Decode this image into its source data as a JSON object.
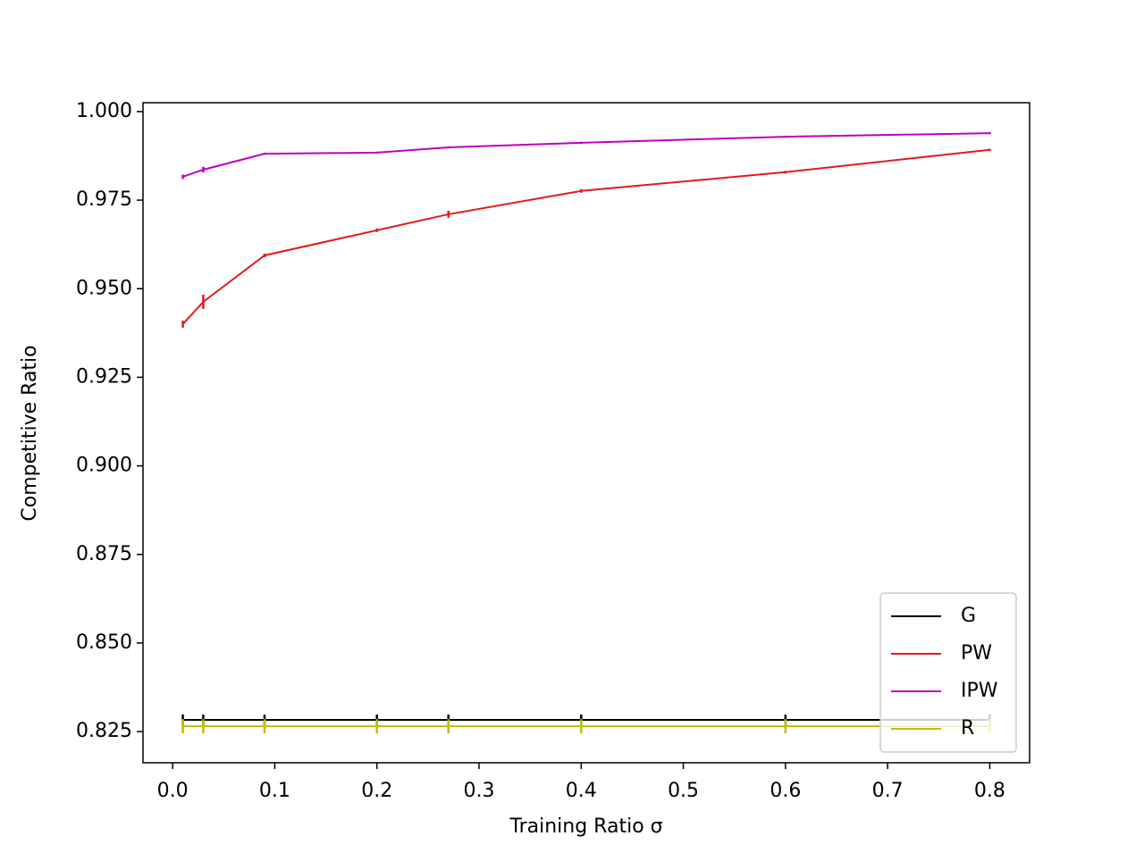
{
  "chart_data": {
    "type": "line",
    "x_label": "Training Ratio σ",
    "y_label": "Competitive Ratio",
    "x": [
      0.01,
      0.03,
      0.09,
      0.2,
      0.27,
      0.4,
      0.6,
      0.8
    ],
    "series": [
      {
        "name": "G",
        "color": "#000000",
        "values": [
          0.8283,
          0.8283,
          0.8283,
          0.8283,
          0.8283,
          0.8283,
          0.8283,
          0.8283
        ],
        "errors": [
          0.0015,
          0.0015,
          0.0015,
          0.0015,
          0.0015,
          0.0015,
          0.0015,
          0.0015
        ]
      },
      {
        "name": "PW",
        "color": "#e31a1c",
        "values": [
          0.94,
          0.9463,
          0.9594,
          0.9665,
          0.971,
          0.9776,
          0.9829,
          0.9892
        ],
        "errors": [
          0.001,
          0.002,
          0.0005,
          0.0005,
          0.001,
          0.0005,
          0.0004,
          0.0003
        ]
      },
      {
        "name": "IPW",
        "color": "#bf00bf",
        "values": [
          0.9816,
          0.9836,
          0.9881,
          0.9884,
          0.9899,
          0.9912,
          0.9929,
          0.9939
        ],
        "errors": [
          0.0006,
          0.0008,
          0.0003,
          0.0003,
          0.0003,
          0.0003,
          0.0003,
          0.0003
        ]
      },
      {
        "name": "R",
        "color": "#bfbf00",
        "values": [
          0.8265,
          0.8265,
          0.8265,
          0.8265,
          0.8265,
          0.8265,
          0.8265,
          0.8265
        ],
        "errors": [
          0.002,
          0.002,
          0.002,
          0.002,
          0.002,
          0.002,
          0.002,
          0.002
        ]
      }
    ],
    "xlim": [
      -0.029,
      0.839
    ],
    "ylim": [
      0.8162,
      1.0025
    ],
    "xticks": [
      {
        "value": 0,
        "label": "0.0"
      },
      0.1,
      0.2,
      0.3,
      0.4,
      0.5,
      0.6,
      0.7,
      0.8
    ],
    "yticks": [
      0.825,
      {
        "value": 0.85,
        "label": "0.850"
      },
      0.875,
      {
        "value": 0.9,
        "label": "0.900"
      },
      0.925,
      {
        "value": 0.95,
        "label": "0.950"
      },
      0.975,
      {
        "value": 1,
        "label": "1.000"
      }
    ],
    "legend": "lower right"
  }
}
